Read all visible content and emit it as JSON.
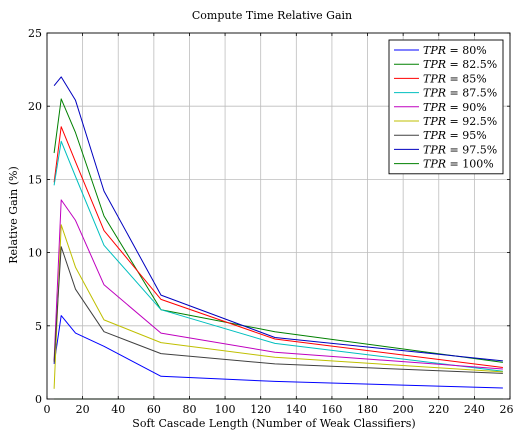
{
  "chart_data": {
    "type": "line",
    "title": "Compute Time Relative Gain",
    "xlabel": "Soft Cascade Length (Number of Weak Classifiers)",
    "ylabel": "Relative Gain (%)",
    "xlim": [
      0,
      260
    ],
    "ylim": [
      0,
      25
    ],
    "xticks": [
      0,
      20,
      40,
      60,
      80,
      100,
      120,
      140,
      160,
      180,
      200,
      220,
      240,
      260
    ],
    "yticks": [
      0,
      5,
      10,
      15,
      20,
      25
    ],
    "grid": true,
    "legend_position": "top-right",
    "x": [
      4,
      8,
      16,
      32,
      64,
      128,
      256
    ],
    "series": [
      {
        "prefix": "TPR",
        "eq": " = ",
        "value": "80%",
        "color": "#0000ff",
        "values": [
          2.4,
          5.7,
          4.5,
          3.6,
          1.55,
          1.2,
          0.75
        ]
      },
      {
        "prefix": "TPR",
        "eq": " = ",
        "value": "82.5%",
        "color": "#008000",
        "values": [
          16.8,
          20.5,
          18.2,
          12.5,
          6.1,
          4.6,
          2.5
        ]
      },
      {
        "prefix": "TPR",
        "eq": " = ",
        "value": "85%",
        "color": "#ff0000",
        "values": [
          14.8,
          18.6,
          16.2,
          11.5,
          6.8,
          4.1,
          2.15
        ]
      },
      {
        "prefix": "TPR",
        "eq": " = ",
        "value": "87.5%",
        "color": "#00bfbf",
        "values": [
          14.6,
          17.6,
          15.2,
          10.5,
          6.1,
          3.8,
          1.9
        ]
      },
      {
        "prefix": "TPR",
        "eq": " = ",
        "value": "90%",
        "color": "#bf00bf",
        "values": [
          2.6,
          13.6,
          12.2,
          7.8,
          4.5,
          3.2,
          2.05
        ]
      },
      {
        "prefix": "TPR",
        "eq": " = ",
        "value": "92.5%",
        "color": "#bfbf00",
        "values": [
          0.7,
          11.9,
          9.0,
          5.4,
          3.85,
          2.85,
          1.85
        ]
      },
      {
        "prefix": "TPR",
        "eq": " = ",
        "value": "95%",
        "color": "#404040",
        "values": [
          2.5,
          10.4,
          7.5,
          4.6,
          3.1,
          2.4,
          1.75
        ]
      },
      {
        "prefix": "TPR",
        "eq": " = ",
        "value": "97.5%",
        "color": "#0000bf",
        "values": [
          21.4,
          22.0,
          20.4,
          14.2,
          7.1,
          4.2,
          2.6
        ]
      },
      {
        "prefix": "TPR",
        "eq": " = ",
        "value": "100%",
        "color": "#008000",
        "values": [
          0,
          0,
          0,
          0,
          0,
          0,
          0
        ]
      }
    ]
  }
}
